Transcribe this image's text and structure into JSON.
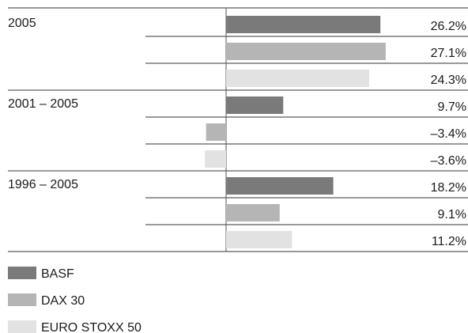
{
  "chart_data": {
    "type": "bar",
    "orientation": "horizontal",
    "groups": [
      {
        "label": "2005",
        "values": [
          26.2,
          27.1,
          24.3
        ],
        "value_labels": [
          "26.2%",
          "27.1%",
          "24.3%"
        ]
      },
      {
        "label": "2001 – 2005",
        "values": [
          9.7,
          -3.4,
          -3.6
        ],
        "value_labels": [
          "9.7%",
          "–3.4%",
          "–3.6%"
        ]
      },
      {
        "label": "1996 – 2005",
        "values": [
          18.2,
          9.1,
          11.2
        ],
        "value_labels": [
          "18.2%",
          "9.1%",
          "11.2%"
        ]
      }
    ],
    "series": [
      {
        "name": "BASF",
        "color": "#7a7a7a"
      },
      {
        "name": "DAX 30",
        "color": "#b5b5b5"
      },
      {
        "name": "EURO STOXX 50",
        "color": "#e2e2e2"
      }
    ],
    "unit": "%",
    "legend_position": "bottom-left",
    "grid": false
  }
}
